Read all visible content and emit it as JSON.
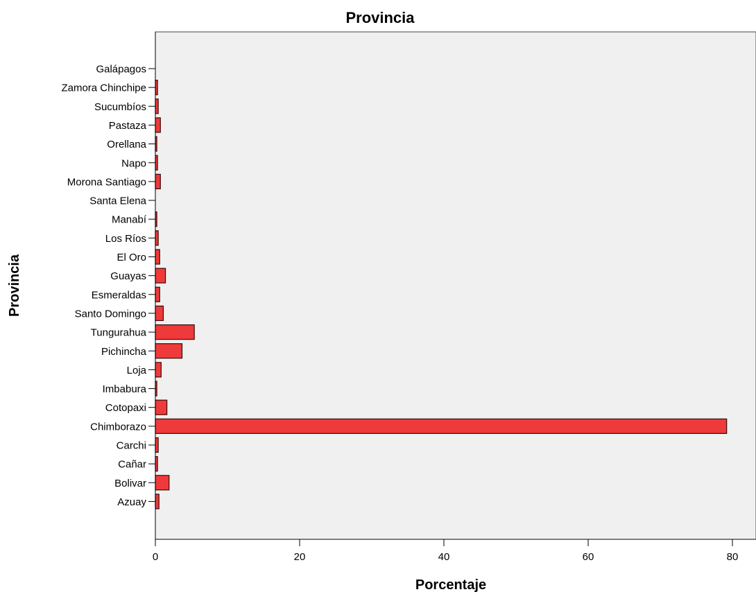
{
  "chart_data": {
    "type": "bar",
    "orientation": "horizontal",
    "title": "Provincia",
    "xlabel": "Porcentaje",
    "ylabel": "Provincia",
    "xlim": [
      0,
      82
    ],
    "xticks": [
      0,
      20,
      40,
      60,
      80
    ],
    "grid": false,
    "legend": "none",
    "categories": [
      "Galápagos",
      "Zamora Chinchipe",
      "Sucumbíos",
      "Pastaza",
      "Orellana",
      "Napo",
      "Morona Santiago",
      "Santa Elena",
      "Manabí",
      "Los Ríos",
      "El Oro",
      "Guayas",
      "Esmeraldas",
      "Santo Domingo",
      "Tungurahua",
      "Pichincha",
      "Loja",
      "Imbabura",
      "Cotopaxi",
      "Chimborazo",
      "Carchi",
      "Cañar",
      "Bolivar",
      "Azuay"
    ],
    "values": [
      0.0,
      0.3,
      0.4,
      0.7,
      0.2,
      0.3,
      0.7,
      0.0,
      0.2,
      0.4,
      0.6,
      1.4,
      0.6,
      1.1,
      5.4,
      3.7,
      0.8,
      0.2,
      1.6,
      79.2,
      0.4,
      0.3,
      1.9,
      0.5
    ],
    "colors": {
      "bar_fill": "#ee3a3a",
      "bar_stroke": "#3a0a0a",
      "plot_background": "#f0f0f0",
      "axis": "#000000"
    }
  }
}
